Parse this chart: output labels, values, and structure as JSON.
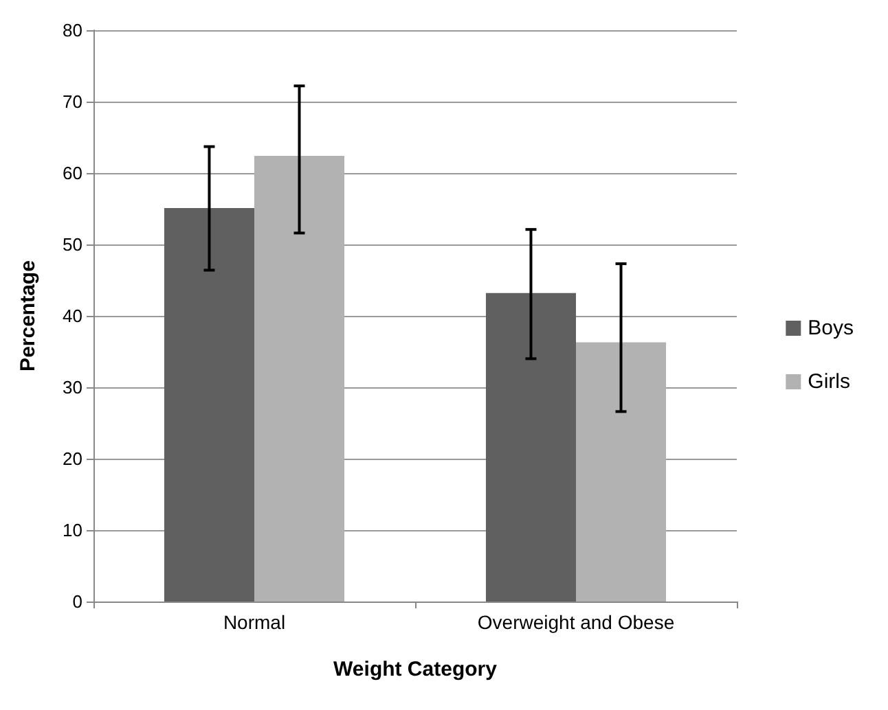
{
  "chart_data": {
    "type": "bar",
    "xlabel": "Weight Category",
    "ylabel": "Percentage",
    "categories": [
      "Normal",
      "Overweight and Obese"
    ],
    "series": [
      {
        "name": "Boys",
        "color": "#606060",
        "values": [
          55.1,
          43.2
        ],
        "errors": [
          [
            46.4,
            63.7
          ],
          [
            34.0,
            52.1
          ]
        ]
      },
      {
        "name": "Girls",
        "color": "#b2b2b2",
        "values": [
          62.4,
          36.3
        ],
        "errors": [
          [
            51.6,
            72.2
          ],
          [
            26.6,
            47.3
          ]
        ]
      }
    ],
    "ylim": [
      0,
      80
    ],
    "yticks": [
      0,
      10,
      20,
      30,
      40,
      50,
      60,
      70,
      80
    ],
    "grid": "y",
    "legend": "right"
  }
}
